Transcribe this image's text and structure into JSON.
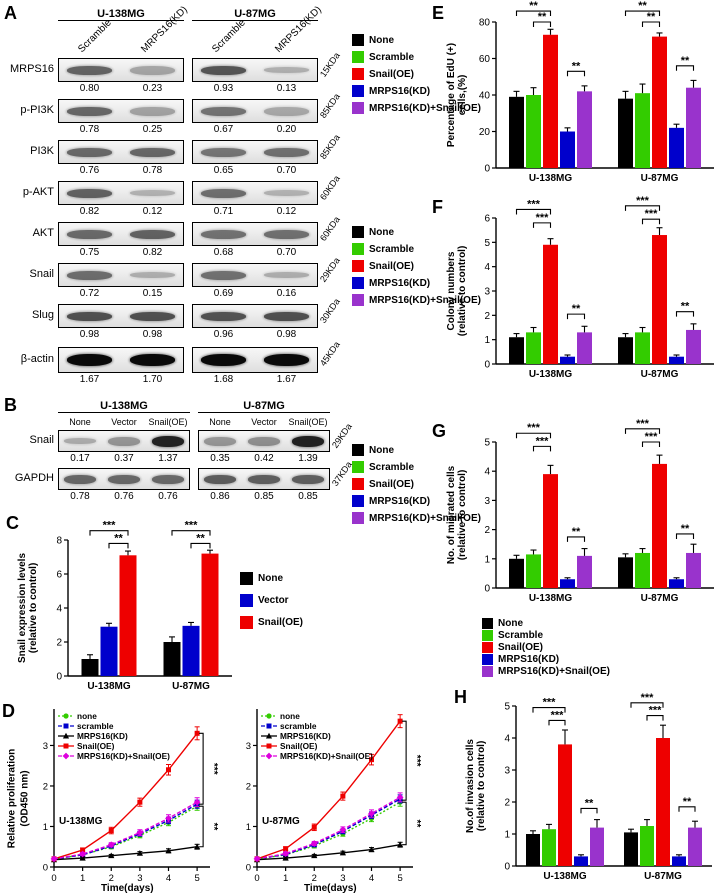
{
  "panels": {
    "A": {
      "letter": "A"
    },
    "B": {
      "letter": "B"
    },
    "C": {
      "letter": "C"
    },
    "D": {
      "letter": "D"
    },
    "E": {
      "letter": "E"
    },
    "F": {
      "letter": "F"
    },
    "G": {
      "letter": "G"
    },
    "H": {
      "letter": "H"
    }
  },
  "d_ylabel": [
    "Relative proliferation",
    "(OD450 nm)"
  ],
  "legend_five": [
    {
      "label": "None",
      "color": "#000000"
    },
    {
      "label": "Scramble",
      "color": "#33cc00"
    },
    {
      "label": "Snail(OE)",
      "color": "#ee0000"
    },
    {
      "label": "MRPS16(KD)",
      "color": "#0000cc"
    },
    {
      "label": "MRPS16(KD)+Snail(OE)",
      "color": "#9933cc"
    }
  ],
  "legend_c": [
    {
      "label": "None",
      "color": "#000000"
    },
    {
      "label": "Vector",
      "color": "#0000cc"
    },
    {
      "label": "Snail(OE)",
      "color": "#ee0000"
    }
  ],
  "blots": {
    "A": {
      "groups": [
        "U-138MG",
        "U-87MG"
      ],
      "lanes": [
        "Scramble",
        "MRPS16(KD)"
      ],
      "rows": [
        {
          "label": "MRPS16",
          "kda": "15KDa",
          "values": [
            [
              "0.80",
              "0.23"
            ],
            [
              "0.93",
              "0.13"
            ]
          ]
        },
        {
          "label": "p-PI3K",
          "kda": "85KDa",
          "values": [
            [
              "0.78",
              "0.25"
            ],
            [
              "0.67",
              "0.20"
            ]
          ]
        },
        {
          "label": "PI3K",
          "kda": "85KDa",
          "values": [
            [
              "0.76",
              "0.78"
            ],
            [
              "0.65",
              "0.70"
            ]
          ]
        },
        {
          "label": "p-AKT",
          "kda": "60KDa",
          "values": [
            [
              "0.82",
              "0.12"
            ],
            [
              "0.71",
              "0.12"
            ]
          ]
        },
        {
          "label": "AKT",
          "kda": "60KDa",
          "values": [
            [
              "0.75",
              "0.82"
            ],
            [
              "0.68",
              "0.70"
            ]
          ]
        },
        {
          "label": "Snail",
          "kda": "29KDa",
          "values": [
            [
              "0.72",
              "0.15"
            ],
            [
              "0.69",
              "0.16"
            ]
          ]
        },
        {
          "label": "Slug",
          "kda": "30KDa",
          "values": [
            [
              "0.98",
              "0.98"
            ],
            [
              "0.96",
              "0.98"
            ]
          ]
        },
        {
          "label": "β-actin",
          "kda": "45KDa",
          "values": [
            [
              "1.67",
              "1.70"
            ],
            [
              "1.68",
              "1.67"
            ]
          ]
        }
      ]
    },
    "B": {
      "groups": [
        "U-138MG",
        "U-87MG"
      ],
      "lanes": [
        "None",
        "Vector",
        "Snail(OE)"
      ],
      "rows": [
        {
          "label": "Snail",
          "kda": "29KDa",
          "values": [
            [
              "0.17",
              "0.37",
              "1.37"
            ],
            [
              "0.35",
              "0.42",
              "1.39"
            ]
          ]
        },
        {
          "label": "GAPDH",
          "kda": "37KDa",
          "values": [
            [
              "0.78",
              "0.76",
              "0.76"
            ],
            [
              "0.86",
              "0.85",
              "0.85"
            ]
          ]
        }
      ]
    }
  },
  "chart_data": [
    {
      "id": "C",
      "type": "bar",
      "ylabel": [
        "Snail expression levels",
        "(relative to control)"
      ],
      "categories": [
        "U-138MG",
        "U-87MG"
      ],
      "ylim": [
        0,
        8
      ],
      "yticks": [
        0,
        2,
        4,
        6,
        8
      ],
      "series": [
        {
          "name": "None",
          "color": "#000000",
          "values": [
            1.0,
            2.0
          ],
          "errors": [
            0.25,
            0.3
          ]
        },
        {
          "name": "Vector",
          "color": "#0000cc",
          "values": [
            2.9,
            2.95
          ],
          "errors": [
            0.2,
            0.2
          ]
        },
        {
          "name": "Snail(OE)",
          "color": "#ee0000",
          "values": [
            7.1,
            7.2
          ],
          "errors": [
            0.25,
            0.2
          ]
        }
      ],
      "sig": [
        {
          "g": 0,
          "s1": 0,
          "s2": 2,
          "y": 8.55,
          "label": "***"
        },
        {
          "g": 0,
          "s1": 1,
          "s2": 2,
          "y": 7.8,
          "label": "**"
        },
        {
          "g": 1,
          "s1": 0,
          "s2": 2,
          "y": 8.55,
          "label": "***"
        },
        {
          "g": 1,
          "s1": 1,
          "s2": 2,
          "y": 7.8,
          "label": "**"
        }
      ]
    },
    {
      "id": "D_U138MG",
      "type": "line",
      "title": "U-138MG",
      "xlabel": "Time(days)",
      "x": [
        0,
        1,
        2,
        3,
        4,
        5
      ],
      "ylim": [
        0,
        3.9
      ],
      "yticks": [
        0,
        1,
        2,
        3
      ],
      "xticks": [
        0,
        1,
        2,
        3,
        4,
        5
      ],
      "series": [
        {
          "name": "none",
          "color": "#33cc00",
          "marker": "circle",
          "dash": "2 2",
          "values": [
            0.2,
            0.3,
            0.5,
            0.78,
            1.1,
            1.5
          ],
          "errors": [
            0.03,
            0.04,
            0.05,
            0.06,
            0.08,
            0.1
          ]
        },
        {
          "name": "scramble",
          "color": "#0000cc",
          "marker": "square",
          "dash": "4 2",
          "values": [
            0.2,
            0.3,
            0.52,
            0.82,
            1.15,
            1.55
          ],
          "errors": [
            0.03,
            0.04,
            0.05,
            0.06,
            0.08,
            0.1
          ]
        },
        {
          "name": "MRPS16(KD)",
          "color": "#000000",
          "marker": "triangle",
          "dash": "",
          "values": [
            0.18,
            0.22,
            0.28,
            0.34,
            0.4,
            0.5
          ],
          "errors": [
            0.02,
            0.03,
            0.03,
            0.04,
            0.05,
            0.06
          ]
        },
        {
          "name": "Snail(OE)",
          "color": "#ee0000",
          "marker": "square",
          "dash": "",
          "values": [
            0.2,
            0.42,
            0.9,
            1.6,
            2.4,
            3.3
          ],
          "errors": [
            0.03,
            0.05,
            0.08,
            0.1,
            0.13,
            0.16
          ]
        },
        {
          "name": "MRPS16(KD)+Snail(OE)",
          "color": "#dd00dd",
          "marker": "diamond",
          "dash": "4 2",
          "values": [
            0.2,
            0.32,
            0.55,
            0.85,
            1.2,
            1.6
          ],
          "errors": [
            0.03,
            0.04,
            0.05,
            0.07,
            0.09,
            0.11
          ]
        }
      ],
      "sig": [
        {
          "y1": 1.55,
          "y2": 3.3,
          "label": "***"
        },
        {
          "y1": 0.5,
          "y2": 1.5,
          "label": "**"
        }
      ]
    },
    {
      "id": "D_U87MG",
      "type": "line",
      "title": "U-87MG",
      "xlabel": "Time(days)",
      "x": [
        0,
        1,
        2,
        3,
        4,
        5
      ],
      "ylim": [
        0,
        3.9
      ],
      "yticks": [
        0,
        1,
        2,
        3
      ],
      "xticks": [
        0,
        1,
        2,
        3,
        4,
        5
      ],
      "series": [
        {
          "name": "none",
          "color": "#33cc00",
          "marker": "circle",
          "dash": "2 2",
          "values": [
            0.2,
            0.3,
            0.52,
            0.82,
            1.2,
            1.6
          ],
          "errors": [
            0.03,
            0.04,
            0.05,
            0.06,
            0.08,
            0.1
          ]
        },
        {
          "name": "scramble",
          "color": "#0000cc",
          "marker": "square",
          "dash": "4 2",
          "values": [
            0.2,
            0.31,
            0.55,
            0.88,
            1.28,
            1.68
          ],
          "errors": [
            0.03,
            0.04,
            0.05,
            0.06,
            0.08,
            0.1
          ]
        },
        {
          "name": "MRPS16(KD)",
          "color": "#000000",
          "marker": "triangle",
          "dash": "",
          "values": [
            0.18,
            0.22,
            0.28,
            0.35,
            0.43,
            0.55
          ],
          "errors": [
            0.02,
            0.03,
            0.03,
            0.04,
            0.05,
            0.06
          ]
        },
        {
          "name": "Snail(OE)",
          "color": "#ee0000",
          "marker": "square",
          "dash": "",
          "values": [
            0.2,
            0.45,
            0.98,
            1.75,
            2.65,
            3.6
          ],
          "errors": [
            0.03,
            0.05,
            0.08,
            0.1,
            0.13,
            0.16
          ]
        },
        {
          "name": "MRPS16(KD)+Snail(OE)",
          "color": "#dd00dd",
          "marker": "diamond",
          "dash": "4 2",
          "values": [
            0.2,
            0.33,
            0.58,
            0.92,
            1.32,
            1.72
          ],
          "errors": [
            0.03,
            0.04,
            0.05,
            0.07,
            0.09,
            0.11
          ]
        }
      ],
      "sig": [
        {
          "y1": 1.65,
          "y2": 3.6,
          "label": "***"
        },
        {
          "y1": 0.55,
          "y2": 1.6,
          "label": "**"
        }
      ]
    },
    {
      "id": "E",
      "type": "bar",
      "ylabel": [
        "Percentage of EdU (+)",
        "cells,(%)"
      ],
      "categories": [
        "U-138MG",
        "U-87MG"
      ],
      "ylim": [
        0,
        80
      ],
      "yticks": [
        0,
        20,
        40,
        60,
        80
      ],
      "series": [
        {
          "name": "None",
          "color": "#000000",
          "values": [
            39,
            38
          ],
          "errors": [
            3,
            4
          ]
        },
        {
          "name": "Scramble",
          "color": "#33cc00",
          "values": [
            40,
            41
          ],
          "errors": [
            4,
            5
          ]
        },
        {
          "name": "Snail(OE)",
          "color": "#ee0000",
          "values": [
            73,
            72
          ],
          "errors": [
            3,
            2
          ]
        },
        {
          "name": "MRPS16(KD)",
          "color": "#0000cc",
          "values": [
            20,
            22
          ],
          "errors": [
            2,
            2
          ]
        },
        {
          "name": "MRPS16(KD)+Snail(OE)",
          "color": "#9933cc",
          "values": [
            42,
            44
          ],
          "errors": [
            3,
            4
          ]
        }
      ],
      "sig": [
        {
          "g": 0,
          "s1": 0,
          "s2": 2,
          "y": 86,
          "label": "**"
        },
        {
          "g": 0,
          "s1": 1,
          "s2": 2,
          "y": 80,
          "label": "**"
        },
        {
          "g": 0,
          "s1": 3,
          "s2": 4,
          "y": 53,
          "label": "**"
        },
        {
          "g": 1,
          "s1": 0,
          "s2": 2,
          "y": 86,
          "label": "**"
        },
        {
          "g": 1,
          "s1": 1,
          "s2": 2,
          "y": 80,
          "label": "**"
        },
        {
          "g": 1,
          "s1": 3,
          "s2": 4,
          "y": 56,
          "label": "**"
        }
      ]
    },
    {
      "id": "F",
      "type": "bar",
      "ylabel": [
        "Colony numbers",
        "(relative to control)"
      ],
      "categories": [
        "U-138MG",
        "U-87MG"
      ],
      "ylim": [
        0,
        6
      ],
      "yticks": [
        0,
        1,
        2,
        3,
        4,
        5,
        6
      ],
      "series": [
        {
          "name": "None",
          "color": "#000000",
          "values": [
            1.1,
            1.1
          ],
          "errors": [
            0.15,
            0.15
          ]
        },
        {
          "name": "Scramble",
          "color": "#33cc00",
          "values": [
            1.3,
            1.3
          ],
          "errors": [
            0.2,
            0.2
          ]
        },
        {
          "name": "Snail(OE)",
          "color": "#ee0000",
          "values": [
            4.9,
            5.3
          ],
          "errors": [
            0.25,
            0.3
          ]
        },
        {
          "name": "MRPS16(KD)",
          "color": "#0000cc",
          "values": [
            0.3,
            0.3
          ],
          "errors": [
            0.07,
            0.07
          ]
        },
        {
          "name": "MRPS16(KD)+Snail(OE)",
          "color": "#9933cc",
          "values": [
            1.3,
            1.4
          ],
          "errors": [
            0.25,
            0.25
          ]
        }
      ],
      "sig": [
        {
          "g": 0,
          "s1": 0,
          "s2": 2,
          "y": 6.35,
          "label": "***"
        },
        {
          "g": 0,
          "s1": 1,
          "s2": 2,
          "y": 5.8,
          "label": "***"
        },
        {
          "g": 0,
          "s1": 3,
          "s2": 4,
          "y": 2.05,
          "label": "**"
        },
        {
          "g": 1,
          "s1": 0,
          "s2": 2,
          "y": 6.5,
          "label": "***"
        },
        {
          "g": 1,
          "s1": 1,
          "s2": 2,
          "y": 5.95,
          "label": "***"
        },
        {
          "g": 1,
          "s1": 3,
          "s2": 4,
          "y": 2.15,
          "label": "**"
        }
      ]
    },
    {
      "id": "G",
      "type": "bar",
      "ylabel": [
        "No. of migrated cells",
        "(relative to control)"
      ],
      "categories": [
        "U-138MG",
        "U-87MG"
      ],
      "ylim": [
        0,
        5
      ],
      "yticks": [
        0,
        1,
        2,
        3,
        4,
        5
      ],
      "series": [
        {
          "name": "None",
          "color": "#000000",
          "values": [
            1.0,
            1.05
          ],
          "errors": [
            0.12,
            0.12
          ]
        },
        {
          "name": "Scramble",
          "color": "#33cc00",
          "values": [
            1.15,
            1.2
          ],
          "errors": [
            0.15,
            0.15
          ]
        },
        {
          "name": "Snail(OE)",
          "color": "#ee0000",
          "values": [
            3.9,
            4.25
          ],
          "errors": [
            0.3,
            0.3
          ]
        },
        {
          "name": "MRPS16(KD)",
          "color": "#0000cc",
          "values": [
            0.3,
            0.3
          ],
          "errors": [
            0.05,
            0.05
          ]
        },
        {
          "name": "MRPS16(KD)+Snail(OE)",
          "color": "#9933cc",
          "values": [
            1.1,
            1.2
          ],
          "errors": [
            0.25,
            0.3
          ]
        }
      ],
      "sig": [
        {
          "g": 0,
          "s1": 0,
          "s2": 2,
          "y": 5.3,
          "label": "***"
        },
        {
          "g": 0,
          "s1": 1,
          "s2": 2,
          "y": 4.85,
          "label": "***"
        },
        {
          "g": 0,
          "s1": 3,
          "s2": 4,
          "y": 1.75,
          "label": "**"
        },
        {
          "g": 1,
          "s1": 0,
          "s2": 2,
          "y": 5.45,
          "label": "***"
        },
        {
          "g": 1,
          "s1": 1,
          "s2": 2,
          "y": 5.0,
          "label": "***"
        },
        {
          "g": 1,
          "s1": 3,
          "s2": 4,
          "y": 1.85,
          "label": "**"
        }
      ]
    },
    {
      "id": "H",
      "type": "bar",
      "ylabel": [
        "No.of invasion cells",
        "(relative to control)"
      ],
      "categories": [
        "U-138MG",
        "U-87MG"
      ],
      "ylim": [
        0,
        5
      ],
      "yticks": [
        0,
        1,
        2,
        3,
        4,
        5
      ],
      "series": [
        {
          "name": "None",
          "color": "#000000",
          "values": [
            1.0,
            1.05
          ],
          "errors": [
            0.1,
            0.1
          ]
        },
        {
          "name": "Scramble",
          "color": "#33cc00",
          "values": [
            1.15,
            1.25
          ],
          "errors": [
            0.15,
            0.2
          ]
        },
        {
          "name": "Snail(OE)",
          "color": "#ee0000",
          "values": [
            3.8,
            4.0
          ],
          "errors": [
            0.45,
            0.4
          ]
        },
        {
          "name": "MRPS16(KD)",
          "color": "#0000cc",
          "values": [
            0.3,
            0.3
          ],
          "errors": [
            0.05,
            0.05
          ]
        },
        {
          "name": "MRPS16(KD)+Snail(OE)",
          "color": "#9933cc",
          "values": [
            1.2,
            1.2
          ],
          "errors": [
            0.25,
            0.2
          ]
        }
      ],
      "sig": [
        {
          "g": 0,
          "s1": 0,
          "s2": 2,
          "y": 4.95,
          "label": "***"
        },
        {
          "g": 0,
          "s1": 1,
          "s2": 2,
          "y": 4.55,
          "label": "***"
        },
        {
          "g": 0,
          "s1": 3,
          "s2": 4,
          "y": 1.8,
          "label": "**"
        },
        {
          "g": 1,
          "s1": 0,
          "s2": 2,
          "y": 5.1,
          "label": "***"
        },
        {
          "g": 1,
          "s1": 1,
          "s2": 2,
          "y": 4.7,
          "label": "***"
        },
        {
          "g": 1,
          "s1": 3,
          "s2": 4,
          "y": 1.85,
          "label": "**"
        }
      ]
    }
  ]
}
